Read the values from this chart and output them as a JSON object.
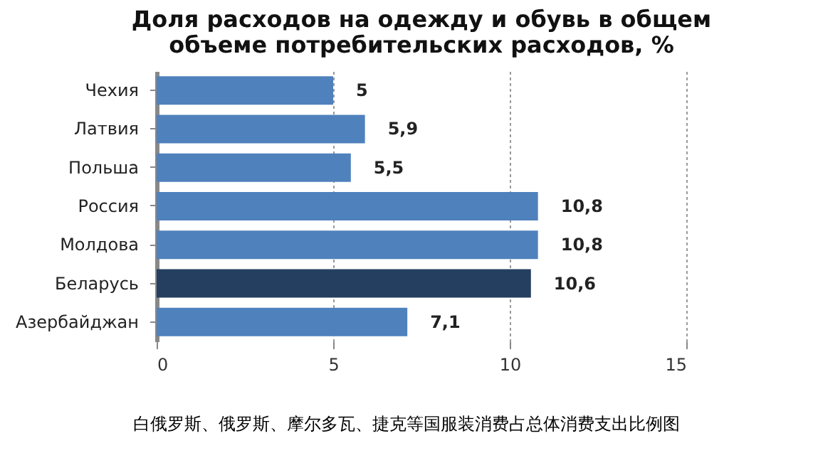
{
  "chart_data": {
    "type": "bar",
    "orientation": "horizontal",
    "title": "Доля расходов на одежду и обувь в общем\nобъеме потребительских расходов, %",
    "categories": [
      "Чехия",
      "Латвия",
      "Польша",
      "Россия",
      "Молдова",
      "Беларусь",
      "Азербайджан"
    ],
    "values": [
      5,
      5.9,
      5.5,
      10.8,
      10.8,
      10.6,
      7.1
    ],
    "colors": [
      "#4f81bd",
      "#4f81bd",
      "#4f81bd",
      "#4f81bd",
      "#4f81bd",
      "#243f60",
      "#4f81bd"
    ],
    "value_labels": [
      "5",
      "5,9",
      "5,5",
      "10,8",
      "10,8",
      "10,6",
      "7,1"
    ],
    "xlim": [
      0,
      15
    ],
    "xticks": [
      0,
      5,
      10,
      15
    ],
    "grid": "x",
    "annotations": [
      "白俄罗斯、俄罗斯、摩尔多瓦、捷克等国服装消费占总体消费支出比例图"
    ]
  }
}
